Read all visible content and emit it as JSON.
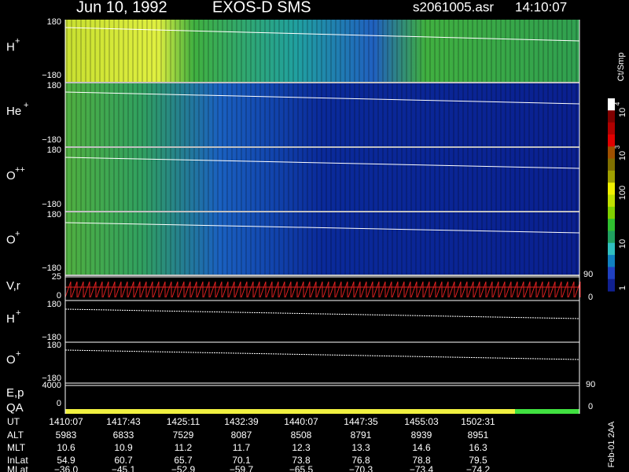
{
  "header": {
    "date": "Jun 10, 1992",
    "instrument": "EXOS-D SMS",
    "file": "s2061005.asr",
    "time": "14:10:07"
  },
  "panels": [
    {
      "label": "H",
      "sup": "+",
      "top": "180",
      "bottom": "−180"
    },
    {
      "label": "He",
      "sup": "+",
      "top": "180",
      "bottom": "−180"
    },
    {
      "label": "O",
      "sup": "++",
      "top": "180",
      "bottom": "−180"
    },
    {
      "label": "O",
      "sup": "+",
      "top": "180",
      "bottom": "−180"
    }
  ],
  "velocity": {
    "label": "V,r",
    "top": "25",
    "bottom": "0",
    "right_top": "90",
    "right_bottom": "0"
  },
  "lines": [
    {
      "label": "H",
      "sup": "+",
      "top": "180",
      "bottom": "−180"
    },
    {
      "label": "O",
      "sup": "+",
      "top": "180",
      "bottom": "−180"
    }
  ],
  "energy": {
    "label": "E,p",
    "tick": "4000",
    "right": "90"
  },
  "quality": {
    "label": "QA",
    "tick": "0",
    "right": "0"
  },
  "colorbar": {
    "unit": "Ct/Smp",
    "labels": [
      {
        "base": "10",
        "exp": "4"
      },
      {
        "base": "10",
        "exp": "3"
      },
      {
        "base": "100"
      },
      {
        "base": "10"
      },
      {
        "base": "1"
      }
    ]
  },
  "table": {
    "rows": [
      [
        "UT",
        "1410:07",
        "1417:43",
        "1425:11",
        "1432:39",
        "1440:07",
        "1447:35",
        "1455:03",
        "1502:31"
      ],
      [
        "ALT",
        "5983",
        "6833",
        "7529",
        "8087",
        "8508",
        "8791",
        "8939",
        "8951"
      ],
      [
        "MLT",
        "10.6",
        "10.9",
        "11.2",
        "11.7",
        "12.3",
        "13.3",
        "14.6",
        "16.3"
      ],
      [
        "InLat",
        "54.9",
        "60.7",
        "65.7",
        "70.1",
        "73.8",
        "76.8",
        "78.8",
        "79.5"
      ],
      [
        "MLat",
        "−36.0",
        "−45.1",
        "−52.9",
        "−59.7",
        "−65.5",
        "−70.3",
        "−73.4",
        "−74.2"
      ]
    ]
  },
  "footer": "Feb-01 2AA"
}
